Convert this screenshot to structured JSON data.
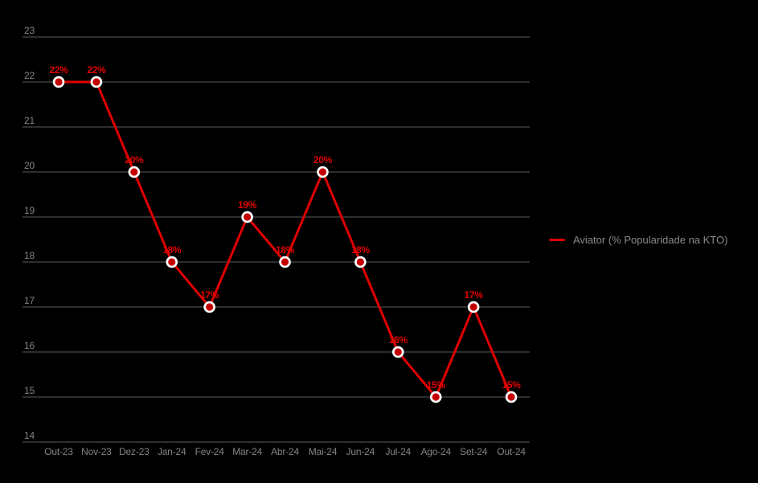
{
  "chart": {
    "background": "#000000",
    "legend": {
      "label": "Aviator (% Popularidade na KTO)",
      "swatch_color": "#e00000"
    },
    "colors": {
      "line": "#e00000",
      "point_fill": "#c40000",
      "point_ring": "#ffffff",
      "grid": "#5d5d5d",
      "axis_text": "#848484",
      "data_label": "#e00000",
      "legend_text": "#8a8a8a"
    }
  },
  "chart_data": {
    "type": "line",
    "title": "",
    "xlabel": "",
    "ylabel": "",
    "categories": [
      "Out-23",
      "Nov-23",
      "Dez-23",
      "Jan-24",
      "Fev-24",
      "Mar-24",
      "Abr-24",
      "Mai-24",
      "Jun-24",
      "Jul-24",
      "Ago-24",
      "Set-24",
      "Out-24"
    ],
    "series": [
      {
        "name": "Aviator (% Popularidade na KTO)",
        "values": [
          22,
          22,
          20,
          18,
          17,
          19,
          18,
          20,
          18,
          16,
          15,
          17,
          15
        ]
      }
    ],
    "data_labels": [
      "22%",
      "22%",
      "20%",
      "18%",
      "17%",
      "19%",
      "18%",
      "20%",
      "18%",
      "16%",
      "15%",
      "17%",
      "15%"
    ],
    "yticks": [
      23,
      22,
      21,
      20,
      19,
      18,
      17,
      16,
      15,
      14
    ],
    "ylim": [
      14,
      23
    ],
    "grid": "horizontal",
    "legend_position": "right"
  }
}
